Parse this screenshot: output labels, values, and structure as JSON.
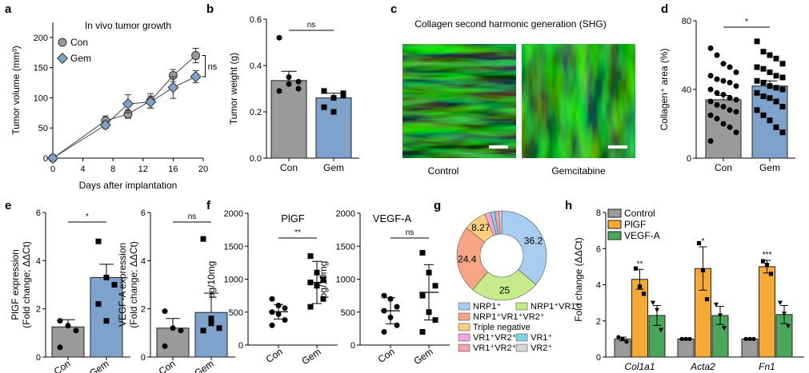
{
  "panel_letters": [
    "a",
    "b",
    "c",
    "d",
    "e",
    "f",
    "g",
    "h"
  ],
  "colors": {
    "con_grey": "#9a9a9a",
    "gem_blue": "#7da3cd",
    "pigf_orange": "#f6a933",
    "vegf_green": "#4aa65a",
    "shg_green": "#2ecf2e"
  },
  "chart_data": [
    {
      "id": "a",
      "type": "line",
      "title": "In vivo tumor growth",
      "xlabel": "Days after implantation",
      "ylabel": "Tumor volume (mm³)",
      "xlim": [
        0,
        20
      ],
      "ylim": [
        0,
        225
      ],
      "xticks": [
        0,
        4,
        8,
        12,
        16,
        20
      ],
      "yticks": [
        0,
        50,
        100,
        150,
        200
      ],
      "series": [
        {
          "name": "Con",
          "x": [
            0,
            7,
            10,
            13,
            16,
            19
          ],
          "y": [
            0,
            62,
            73,
            95,
            137,
            170
          ],
          "err": [
            0,
            8,
            7,
            12,
            10,
            12
          ]
        },
        {
          "name": "Gem",
          "x": [
            0,
            7,
            10,
            13,
            16,
            19
          ],
          "y": [
            0,
            55,
            90,
            93,
            117,
            135
          ],
          "err": [
            0,
            6,
            15,
            10,
            18,
            10
          ]
        }
      ],
      "annotation": "ns"
    },
    {
      "id": "b",
      "type": "bar",
      "categories": [
        "Con",
        "Gem"
      ],
      "ylabel": "Tumor weight (g)",
      "ylim": [
        0,
        0.6
      ],
      "yticks": [
        "0.0",
        "0.2",
        "0.4",
        "0.6"
      ],
      "values": [
        0.335,
        0.26
      ],
      "err": [
        0.04,
        0.02
      ],
      "points": [
        [
          0.52,
          0.35,
          0.3,
          0.29,
          0.32,
          0.33
        ],
        [
          0.29,
          0.26,
          0.27,
          0.22,
          0.2,
          0.28
        ]
      ],
      "annotation": "ns"
    },
    {
      "id": "d",
      "type": "bar",
      "categories": [
        "Con",
        "Gem"
      ],
      "ylabel": "Collagen⁺ area (%)",
      "ylim": [
        0,
        80
      ],
      "yticks": [
        "0",
        "40",
        "80"
      ],
      "values": [
        34,
        42
      ],
      "err": [
        2.5,
        3
      ],
      "points": [
        [
          64,
          60,
          55,
          53,
          50,
          48,
          46,
          45,
          44,
          42,
          40,
          38,
          37,
          35,
          34,
          33,
          31,
          30,
          28,
          27,
          25,
          23,
          20,
          18,
          15,
          10
        ],
        [
          68,
          62,
          60,
          58,
          55,
          53,
          52,
          50,
          48,
          47,
          45,
          44,
          42,
          41,
          40,
          38,
          36,
          35,
          33,
          30,
          28,
          25,
          22,
          18,
          15
        ]
      ],
      "annotation": "*"
    },
    {
      "id": "e1",
      "type": "bar",
      "categories": [
        "Con",
        "Gem"
      ],
      "ylabel": "PlGF expression\n(Fold change; ΔΔCt)",
      "ylim": [
        0,
        6
      ],
      "yticks": [
        "0",
        "2",
        "4",
        "6"
      ],
      "values": [
        1.25,
        3.3
      ],
      "err": [
        0.3,
        0.55
      ],
      "points": [
        [
          1.5,
          1.3,
          1.1,
          0.4
        ],
        [
          4.8,
          3.3,
          3.0,
          2.2,
          1.5
        ]
      ],
      "annotation": "*"
    },
    {
      "id": "e2",
      "type": "bar",
      "categories": [
        "Con",
        "Gem"
      ],
      "ylabel": "VEGF-A expression\n(Fold change; ΔΔCt)",
      "ylim": [
        0,
        6
      ],
      "yticks": [
        "0",
        "2",
        "4",
        "6"
      ],
      "values": [
        1.2,
        1.85
      ],
      "err": [
        0.4,
        0.8
      ],
      "points": [
        [
          1.9,
          1.2,
          1.1,
          0.45
        ],
        [
          4.9,
          1.6,
          1.2,
          1.1,
          1.4
        ]
      ],
      "annotation": "ns"
    },
    {
      "id": "f1",
      "type": "scatter",
      "title": "PlGF",
      "categories": [
        "Con",
        "Gem"
      ],
      "ylabel": "pg/10mg",
      "ylim": [
        0,
        2000
      ],
      "yticks": [
        "0",
        "500",
        "1000",
        "1500",
        "2000"
      ],
      "means": [
        505,
        950
      ],
      "sd": [
        110,
        320
      ],
      "points": [
        [
          700,
          600,
          560,
          500,
          470,
          380,
          300
        ],
        [
          1350,
          1100,
          1000,
          950,
          900,
          700,
          580
        ]
      ],
      "annotation": "**"
    },
    {
      "id": "f2",
      "type": "scatter",
      "title": "VEGF-A",
      "categories": [
        "Con",
        "Gem"
      ],
      "ylabel": "pg/10mg",
      "ylim": [
        0,
        2000
      ],
      "yticks": [
        "0",
        "500",
        "1000",
        "1500",
        "2000"
      ],
      "means": [
        520,
        800
      ],
      "sd": [
        200,
        420
      ],
      "points": [
        [
          750,
          700,
          580,
          520,
          420,
          300,
          200
        ],
        [
          1400,
          1100,
          900,
          750,
          500,
          380,
          200
        ]
      ],
      "annotation": "ns"
    },
    {
      "id": "g",
      "type": "pie",
      "donut": true,
      "slices": [
        {
          "name": "NRP1⁺",
          "value": 36.2,
          "color": "#a9cdf1",
          "label": "36.2"
        },
        {
          "name": "NRP1⁺VR1⁺",
          "value": 25,
          "color": "#c7eb8b",
          "label": "25"
        },
        {
          "name": "NRP1⁺VR1⁺VR2⁺",
          "value": 24.4,
          "color": "#f7a585",
          "label": "24.4"
        },
        {
          "name": "Triple negative",
          "value": 8.27,
          "color": "#fbd07d",
          "label": "8.27"
        },
        {
          "name": "VR1⁺VR2⁺",
          "value": 2.1,
          "color": "#f3a6e2",
          "label": ""
        },
        {
          "name": "VR1⁺",
          "value": 1.5,
          "color": "#7fd3e6",
          "label": ""
        },
        {
          "name": "VR1⁺VR2⁺",
          "value": 1.5,
          "color": "#f5a3b3",
          "label": ""
        },
        {
          "name": "VR2⁺",
          "value": 1.03,
          "color": "#d6d6d6",
          "label": ""
        }
      ],
      "legend": [
        [
          "NRP1⁺",
          "NRP1⁺VR1⁺"
        ],
        [
          "NRP1⁺VR1⁺VR2⁺",
          ""
        ],
        [
          "Triple negative",
          ""
        ],
        [
          "VR1⁺VR2⁺",
          "VR1⁺"
        ],
        [
          "VR1⁺VR2⁺",
          "VR2⁺"
        ]
      ]
    },
    {
      "id": "h",
      "type": "bar",
      "ylabel": "Fold change (ΔΔCt)",
      "categories": [
        "Col1a1",
        "Acta2",
        "Fn1"
      ],
      "ylim": [
        0,
        8
      ],
      "yticks": [
        "0",
        "2",
        "4",
        "6",
        "8"
      ],
      "series": [
        {
          "name": "Control",
          "color": "#9a9a9a",
          "values": [
            1.0,
            1.0,
            1.0
          ],
          "err": [
            0.1,
            0.05,
            0.05
          ],
          "points": [
            [
              1.1,
              1.0,
              0.85
            ],
            [
              1.0,
              1.0,
              1.0
            ],
            [
              1.0,
              1.0,
              1.0
            ]
          ]
        },
        {
          "name": "PlGF",
          "color": "#f6a933",
          "values": [
            4.3,
            4.9,
            5.0
          ],
          "err": [
            0.55,
            1.2,
            0.35
          ],
          "points": [
            [
              4.9,
              3.9,
              3.5
            ],
            [
              6.3,
              4.8,
              3.2
            ],
            [
              5.3,
              5.1,
              4.6
            ]
          ]
        },
        {
          "name": "VEGF-A",
          "color": "#4aa65a",
          "values": [
            2.3,
            2.3,
            2.35
          ],
          "err": [
            0.55,
            0.5,
            0.5
          ],
          "points": [
            [
              3.0,
              2.6,
              1.5
            ],
            [
              2.9,
              2.3,
              1.6
            ],
            [
              3.0,
              2.4,
              1.7
            ]
          ]
        }
      ],
      "annotations": [
        "**",
        "*",
        "***"
      ]
    }
  ],
  "images": {
    "title": "Collagen second harmonic generation (SHG)",
    "labels": [
      "Control",
      "Gemcitabine"
    ]
  }
}
